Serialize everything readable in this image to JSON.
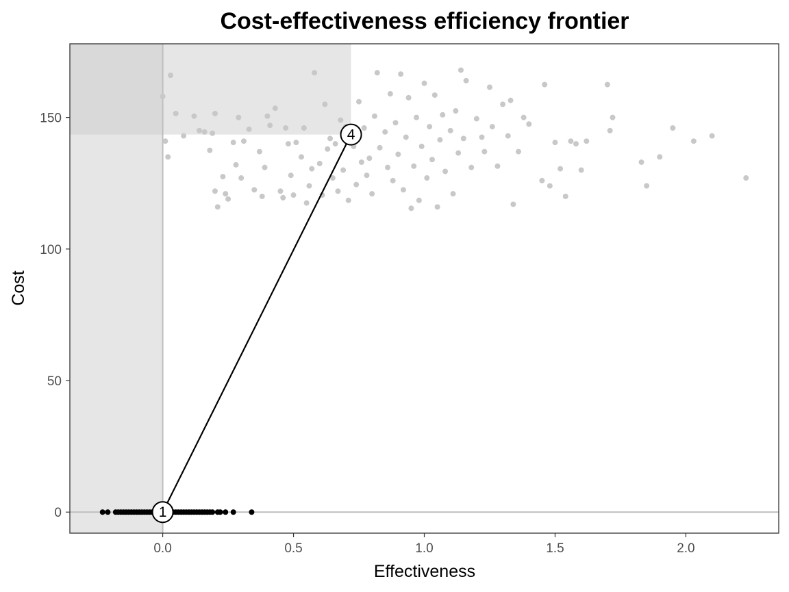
{
  "chart_data": {
    "type": "scatter",
    "title": "Cost-effectiveness efficiency frontier",
    "xlabel": "Effectiveness",
    "ylabel": "Cost",
    "xlim": [
      -0.355,
      2.355
    ],
    "ylim": [
      -8,
      178
    ],
    "x_ticks": [
      0.0,
      0.5,
      1.0,
      1.5,
      2.0
    ],
    "x_tick_labels": [
      "0.0",
      "0.5",
      "1.0",
      "1.5",
      "2.0"
    ],
    "y_ticks": [
      0,
      50,
      100,
      150
    ],
    "y_tick_labels": [
      "0",
      "50",
      "100",
      "150"
    ],
    "grid": false,
    "reference_lines": {
      "x": 0,
      "y": 0
    },
    "shaded_regions": [
      {
        "name": "dominated-region",
        "x": [
          -0.355,
          0.72
        ],
        "y": [
          143.5,
          178
        ]
      },
      {
        "name": "less-effective-region",
        "x": [
          -0.355,
          0
        ],
        "y": [
          -8,
          178
        ]
      }
    ],
    "series": [
      {
        "color": "#c8c8c8",
        "points": [
          [
            0.0,
            158.0
          ],
          [
            0.01,
            141.0
          ],
          [
            0.02,
            135.0
          ],
          [
            0.03,
            166.0
          ],
          [
            0.05,
            151.5
          ],
          [
            0.08,
            143.0
          ],
          [
            0.12,
            150.5
          ],
          [
            0.14,
            145.0
          ],
          [
            0.16,
            144.5
          ],
          [
            0.18,
            137.5
          ],
          [
            0.19,
            144.0
          ],
          [
            0.2,
            151.5
          ],
          [
            0.2,
            122.0
          ],
          [
            0.21,
            116.0
          ],
          [
            0.23,
            127.5
          ],
          [
            0.24,
            121.0
          ],
          [
            0.25,
            119.0
          ],
          [
            0.27,
            140.5
          ],
          [
            0.28,
            132.0
          ],
          [
            0.29,
            150.0
          ],
          [
            0.3,
            127.0
          ],
          [
            0.31,
            141.0
          ],
          [
            0.33,
            145.5
          ],
          [
            0.35,
            122.5
          ],
          [
            0.37,
            137.0
          ],
          [
            0.38,
            120.0
          ],
          [
            0.39,
            131.0
          ],
          [
            0.4,
            150.5
          ],
          [
            0.41,
            147.0
          ],
          [
            0.43,
            153.5
          ],
          [
            0.45,
            122.0
          ],
          [
            0.46,
            119.5
          ],
          [
            0.47,
            146.0
          ],
          [
            0.48,
            140.0
          ],
          [
            0.49,
            128.0
          ],
          [
            0.5,
            120.5
          ],
          [
            0.51,
            140.5
          ],
          [
            0.53,
            135.0
          ],
          [
            0.54,
            146.0
          ],
          [
            0.55,
            117.5
          ],
          [
            0.56,
            124.0
          ],
          [
            0.57,
            130.5
          ],
          [
            0.58,
            167.0
          ],
          [
            0.6,
            132.5
          ],
          [
            0.61,
            120.5
          ],
          [
            0.62,
            155.0
          ],
          [
            0.63,
            138.0
          ],
          [
            0.64,
            142.0
          ],
          [
            0.65,
            127.0
          ],
          [
            0.66,
            140.0
          ],
          [
            0.67,
            122.0
          ],
          [
            0.68,
            149.0
          ],
          [
            0.69,
            130.0
          ],
          [
            0.7,
            146.5
          ],
          [
            0.71,
            118.5
          ],
          [
            0.73,
            139.0
          ],
          [
            0.74,
            124.5
          ],
          [
            0.75,
            156.0
          ],
          [
            0.76,
            133.0
          ],
          [
            0.77,
            146.0
          ],
          [
            0.78,
            128.0
          ],
          [
            0.79,
            134.5
          ],
          [
            0.8,
            121.0
          ],
          [
            0.81,
            150.5
          ],
          [
            0.82,
            167.0
          ],
          [
            0.83,
            138.5
          ],
          [
            0.85,
            144.5
          ],
          [
            0.86,
            131.0
          ],
          [
            0.87,
            159.0
          ],
          [
            0.88,
            126.0
          ],
          [
            0.89,
            148.0
          ],
          [
            0.9,
            136.0
          ],
          [
            0.91,
            166.5
          ],
          [
            0.92,
            122.5
          ],
          [
            0.93,
            142.5
          ],
          [
            0.94,
            157.5
          ],
          [
            0.95,
            115.5
          ],
          [
            0.96,
            131.5
          ],
          [
            0.97,
            150.0
          ],
          [
            0.98,
            118.5
          ],
          [
            0.99,
            139.0
          ],
          [
            1.0,
            163.0
          ],
          [
            1.01,
            127.0
          ],
          [
            1.02,
            146.5
          ],
          [
            1.03,
            134.0
          ],
          [
            1.04,
            158.5
          ],
          [
            1.05,
            116.0
          ],
          [
            1.06,
            141.5
          ],
          [
            1.07,
            151.0
          ],
          [
            1.08,
            129.5
          ],
          [
            1.1,
            145.0
          ],
          [
            1.11,
            121.0
          ],
          [
            1.12,
            152.5
          ],
          [
            1.13,
            136.5
          ],
          [
            1.14,
            168.0
          ],
          [
            1.15,
            142.0
          ],
          [
            1.16,
            164.0
          ],
          [
            1.18,
            131.0
          ],
          [
            1.2,
            149.5
          ],
          [
            1.22,
            142.5
          ],
          [
            1.23,
            137.0
          ],
          [
            1.25,
            161.5
          ],
          [
            1.26,
            146.5
          ],
          [
            1.28,
            131.5
          ],
          [
            1.3,
            155.0
          ],
          [
            1.32,
            143.0
          ],
          [
            1.33,
            156.5
          ],
          [
            1.34,
            117.0
          ],
          [
            1.36,
            137.0
          ],
          [
            1.38,
            150.0
          ],
          [
            1.4,
            147.5
          ],
          [
            1.45,
            126.0
          ],
          [
            1.46,
            162.5
          ],
          [
            1.48,
            124.0
          ],
          [
            1.5,
            140.5
          ],
          [
            1.52,
            130.5
          ],
          [
            1.54,
            120.0
          ],
          [
            1.56,
            141.0
          ],
          [
            1.58,
            140.0
          ],
          [
            1.6,
            130.0
          ],
          [
            1.62,
            141.0
          ],
          [
            1.7,
            162.5
          ],
          [
            1.71,
            145.0
          ],
          [
            1.72,
            150.0
          ],
          [
            1.83,
            133.0
          ],
          [
            1.85,
            124.0
          ],
          [
            1.9,
            135.0
          ],
          [
            1.95,
            146.0
          ],
          [
            2.03,
            141.0
          ],
          [
            2.1,
            143.0
          ],
          [
            2.23,
            127.0
          ]
        ]
      },
      {
        "color": "#000000",
        "points": [
          [
            -0.23,
            0
          ],
          [
            -0.21,
            0
          ],
          [
            -0.18,
            0
          ],
          [
            -0.17,
            0
          ],
          [
            -0.16,
            0
          ],
          [
            -0.15,
            0
          ],
          [
            -0.14,
            0
          ],
          [
            -0.13,
            0
          ],
          [
            -0.12,
            0
          ],
          [
            -0.11,
            0
          ],
          [
            -0.1,
            0
          ],
          [
            -0.09,
            0
          ],
          [
            -0.08,
            0
          ],
          [
            -0.07,
            0
          ],
          [
            -0.06,
            0
          ],
          [
            -0.05,
            0
          ],
          [
            -0.04,
            0
          ],
          [
            -0.03,
            0
          ],
          [
            -0.02,
            0
          ],
          [
            -0.01,
            0
          ],
          [
            0.0,
            0
          ],
          [
            0.01,
            0
          ],
          [
            0.02,
            0
          ],
          [
            0.03,
            0
          ],
          [
            0.04,
            0
          ],
          [
            0.05,
            0
          ],
          [
            0.06,
            0
          ],
          [
            0.07,
            0
          ],
          [
            0.08,
            0
          ],
          [
            0.09,
            0
          ],
          [
            0.1,
            0
          ],
          [
            0.11,
            0
          ],
          [
            0.12,
            0
          ],
          [
            0.13,
            0
          ],
          [
            0.14,
            0
          ],
          [
            0.15,
            0
          ],
          [
            0.16,
            0
          ],
          [
            0.17,
            0
          ],
          [
            0.18,
            0
          ],
          [
            0.19,
            0
          ],
          [
            0.21,
            0
          ],
          [
            0.22,
            0
          ],
          [
            0.24,
            0
          ],
          [
            0.27,
            0
          ],
          [
            0.34,
            0
          ]
        ]
      }
    ],
    "frontier": [
      {
        "label": "1",
        "x": 0.0,
        "y": 0.0
      },
      {
        "label": "4",
        "x": 0.72,
        "y": 143.5
      }
    ]
  },
  "colors": {
    "panel_border": "#333333",
    "reference_line": "#bebebe",
    "shade_light": "#e6e6e6",
    "shade_overlap": "#d9d9d9",
    "frontier_line": "#000000"
  }
}
